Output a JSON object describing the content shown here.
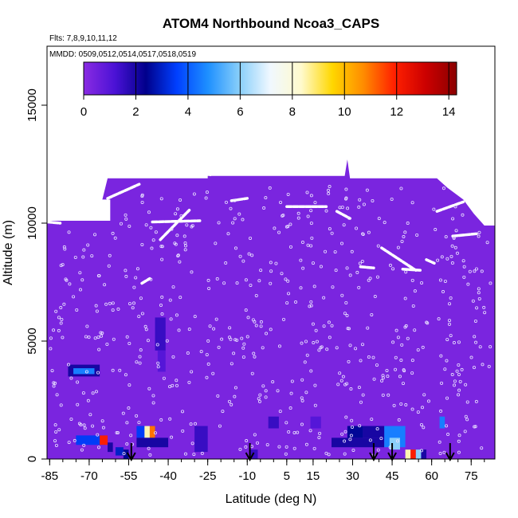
{
  "chart_data": {
    "type": "heatmap",
    "title": "ATOM4 Northbound Ncoa3_CAPS",
    "flights_note": "Flts: 7,8,9,10,11,12",
    "dates_note": "MMDD: 0509,0512,0514,0517,0518,0519",
    "xlabel": "Latitude (deg N)",
    "ylabel": "Altitude (m)",
    "xlim": [
      -86,
      84
    ],
    "ylim": [
      0,
      17500
    ],
    "x_ticks": [
      -85,
      -70,
      -55,
      -40,
      -25,
      -10,
      5,
      15,
      30,
      45,
      60,
      75
    ],
    "y_ticks": [
      0,
      5000,
      10000,
      15000
    ],
    "colorbar": {
      "min": 0,
      "max": 14.3,
      "ticks": [
        0,
        2,
        4,
        6,
        8,
        10,
        12,
        14
      ],
      "colors": [
        "#8a2be2",
        "#4b12d6",
        "#00008b",
        "#0040ff",
        "#1e90ff",
        "#87cefa",
        "#f0f8ff",
        "#fffacd",
        "#ffd700",
        "#ff8c00",
        "#ff2000",
        "#cc0000",
        "#8b0000"
      ]
    },
    "background_value": 0.3,
    "envelope": [
      {
        "lat": -86,
        "top": 10100
      },
      {
        "lat": -62,
        "top": 10100
      },
      {
        "lat": -62,
        "top": 11000
      },
      {
        "lat": -65,
        "top": 11000
      },
      {
        "lat": -63,
        "top": 11900
      },
      {
        "lat": -25,
        "top": 11900
      },
      {
        "lat": -25,
        "top": 12000
      },
      {
        "lat": 27,
        "top": 12000
      },
      {
        "lat": 28,
        "top": 12700
      },
      {
        "lat": 29,
        "top": 11900
      },
      {
        "lat": 62,
        "top": 11900
      },
      {
        "lat": 66,
        "top": 11500
      },
      {
        "lat": 72,
        "top": 11000
      },
      {
        "lat": 76,
        "top": 10400
      },
      {
        "lat": 80,
        "top": 9900
      },
      {
        "lat": 84,
        "top": 9900
      }
    ],
    "cells": [
      {
        "lat0": -78,
        "lat1": -66,
        "alt0": 3500,
        "alt1": 4000,
        "value": 2.0
      },
      {
        "lat0": -76,
        "lat1": -68,
        "alt0": 3600,
        "alt1": 3850,
        "value": 4.5
      },
      {
        "lat0": -75,
        "lat1": -64,
        "alt0": 600,
        "alt1": 1000,
        "value": 3.5
      },
      {
        "lat0": -66,
        "lat1": -63,
        "alt0": 600,
        "alt1": 1000,
        "value": 12.0
      },
      {
        "lat0": -63,
        "lat1": -61,
        "alt0": 300,
        "alt1": 700,
        "value": 2.0
      },
      {
        "lat0": -60,
        "lat1": -57,
        "alt0": 150,
        "alt1": 500,
        "value": 3.0
      },
      {
        "lat0": -57,
        "lat1": -55,
        "alt0": 0,
        "alt1": 400,
        "value": 2.5
      },
      {
        "lat0": -52,
        "lat1": -45,
        "alt0": 900,
        "alt1": 1400,
        "value": 3.5
      },
      {
        "lat0": -49,
        "lat1": -47,
        "alt0": 900,
        "alt1": 1400,
        "value": 8.5
      },
      {
        "lat0": -47,
        "lat1": -45,
        "alt0": 900,
        "alt1": 1400,
        "value": 11.0
      },
      {
        "lat0": -52,
        "lat1": -40,
        "alt0": 500,
        "alt1": 900,
        "value": 2.0
      },
      {
        "lat0": -45,
        "lat1": -41,
        "alt0": 4600,
        "alt1": 6000,
        "value": 1.5
      },
      {
        "lat0": -44,
        "lat1": -41,
        "alt0": 3700,
        "alt1": 4600,
        "value": 1.0
      },
      {
        "lat0": -30,
        "lat1": -25,
        "alt0": 300,
        "alt1": 1400,
        "value": 1.5
      },
      {
        "lat0": -9,
        "lat1": -6,
        "alt0": 0,
        "alt1": 400,
        "value": 1.5
      },
      {
        "lat0": -2,
        "lat1": 2,
        "alt0": 1300,
        "alt1": 1800,
        "value": 1.5
      },
      {
        "lat0": 14,
        "lat1": 18,
        "alt0": 1300,
        "alt1": 1800,
        "value": 1.0
      },
      {
        "lat0": 22,
        "lat1": 42,
        "alt0": 500,
        "alt1": 900,
        "value": 2.0
      },
      {
        "lat0": 28,
        "lat1": 34,
        "alt0": 900,
        "alt1": 1400,
        "value": 2.5
      },
      {
        "lat0": 34,
        "lat1": 44,
        "alt0": 900,
        "alt1": 1400,
        "value": 2.0
      },
      {
        "lat0": 42,
        "lat1": 50,
        "alt0": 500,
        "alt1": 1400,
        "value": 4.5
      },
      {
        "lat0": 44,
        "lat1": 48,
        "alt0": 400,
        "alt1": 900,
        "value": 6.0
      },
      {
        "lat0": 50,
        "lat1": 52,
        "alt0": 0,
        "alt1": 400,
        "value": 8.5
      },
      {
        "lat0": 52,
        "lat1": 54,
        "alt0": 0,
        "alt1": 400,
        "value": 12.0
      },
      {
        "lat0": 54,
        "lat1": 56,
        "alt0": 0,
        "alt1": 400,
        "value": 6.0
      },
      {
        "lat0": 56,
        "lat1": 58,
        "alt0": 0,
        "alt1": 400,
        "value": 2.0
      },
      {
        "lat0": 63,
        "lat1": 65,
        "alt0": 1300,
        "alt1": 1800,
        "value": 4.5
      }
    ],
    "white_track_segments": [
      [
        [
          -86,
          10050
        ],
        [
          -81,
          10000
        ]
      ],
      [
        [
          -63,
          11050
        ],
        [
          -51,
          11650
        ]
      ],
      [
        [
          -50,
          7450
        ],
        [
          -47,
          7650
        ]
      ],
      [
        [
          -25,
          12150
        ],
        [
          -24,
          12050
        ]
      ],
      [
        [
          -43,
          9300
        ],
        [
          -32,
          10550
        ]
      ],
      [
        [
          -16,
          10950
        ],
        [
          -10,
          11050
        ]
      ],
      [
        [
          5,
          10700
        ],
        [
          20,
          10700
        ]
      ],
      [
        [
          24,
          10500
        ],
        [
          29,
          10200
        ]
      ],
      [
        [
          28,
          12950
        ],
        [
          29,
          12600
        ]
      ],
      [
        [
          41,
          8950
        ],
        [
          54,
          8000
        ]
      ],
      [
        [
          33,
          8150
        ],
        [
          38,
          8100
        ]
      ],
      [
        [
          49,
          8050
        ],
        [
          56,
          8000
        ]
      ],
      [
        [
          62,
          10500
        ],
        [
          72,
          10900
        ]
      ],
      [
        [
          68,
          9450
        ],
        [
          77,
          9550
        ]
      ],
      [
        [
          -46,
          10050
        ],
        [
          -28,
          10100
        ]
      ],
      [
        [
          58,
          8450
        ],
        [
          61,
          8300
        ]
      ]
    ],
    "sonde_arrows_lat": [
      -54,
      -9,
      38,
      45,
      67
    ]
  }
}
